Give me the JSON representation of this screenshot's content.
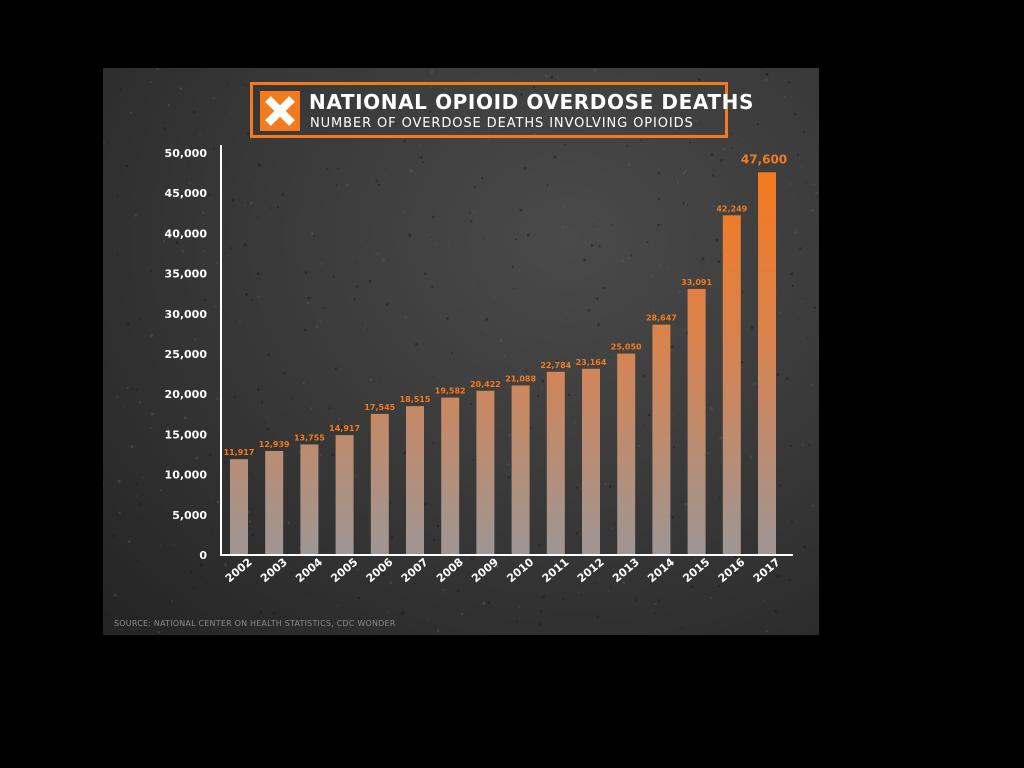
{
  "chart_data": {
    "type": "bar",
    "title": "NATIONAL OPIOID OVERDOSE DEATHS",
    "subtitle": "NUMBER OF OVERDOSE DEATHS INVOLVING OPIOIDS",
    "categories": [
      "2002",
      "2003",
      "2004",
      "2005",
      "2006",
      "2007",
      "2008",
      "2009",
      "2010",
      "2011",
      "2012",
      "2013",
      "2014",
      "2015",
      "2016",
      "2017"
    ],
    "values": [
      11917,
      12939,
      13755,
      14917,
      17545,
      18515,
      19582,
      20422,
      21088,
      22784,
      23164,
      25050,
      28647,
      33091,
      42249,
      47600
    ],
    "data_labels": [
      "11,917",
      "12,939",
      "13,755",
      "14,917",
      "17,545",
      "18,515",
      "19,582",
      "20,422",
      "21,088",
      "22,784",
      "23,164",
      "25,050",
      "28,647",
      "33,091",
      "42,249",
      "47,600"
    ],
    "ylim": [
      0,
      50000
    ],
    "yticks": [
      0,
      5000,
      10000,
      15000,
      20000,
      25000,
      30000,
      35000,
      40000,
      45000,
      50000
    ],
    "ytick_labels": [
      "0",
      "5,000",
      "10,000",
      "15,000",
      "20,000",
      "25,000",
      "30,000",
      "35,000",
      "40,000",
      "45,000",
      "50,000"
    ],
    "grid": false,
    "legend": "none",
    "colors": {
      "accent": "#f47a1f",
      "bar_bottom": "#9d9694",
      "axis": "#ffffff",
      "label": "#ffffff"
    }
  },
  "source": "SOURCE: NATIONAL CENTER ON HEALTH STATISTICS, CDC WONDER",
  "icon": "x-mark-icon"
}
